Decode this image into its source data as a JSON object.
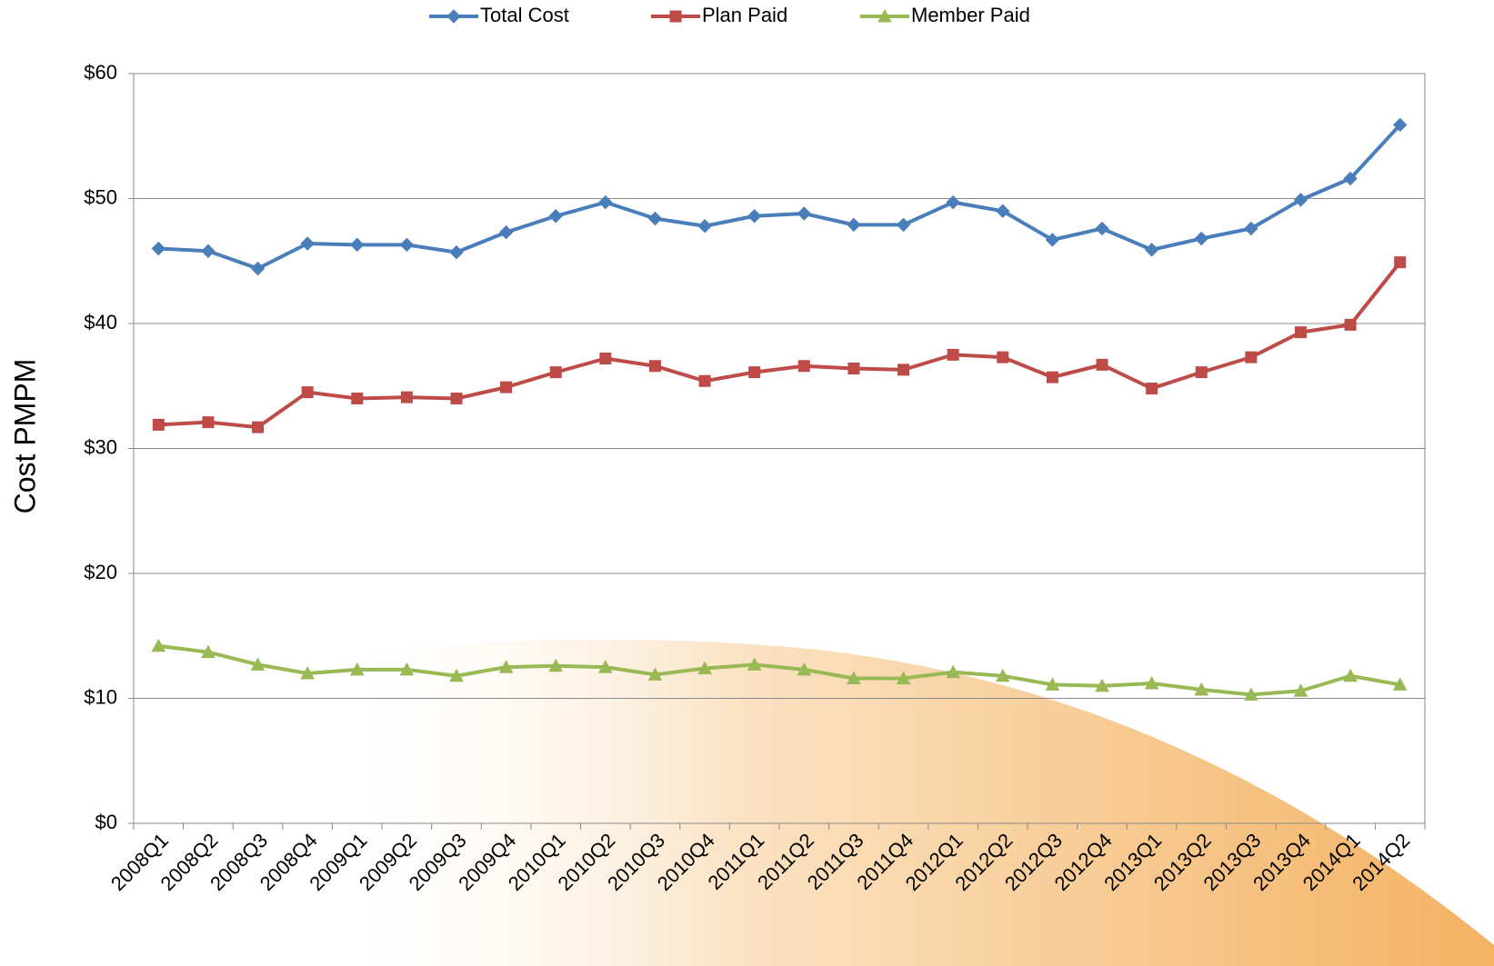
{
  "chart_data": {
    "type": "line",
    "y_label": "Cost PMPM",
    "categories": [
      "2008Q1",
      "2008Q2",
      "2008Q3",
      "2008Q4",
      "2009Q1",
      "2009Q2",
      "2009Q3",
      "2009Q4",
      "2010Q1",
      "2010Q2",
      "2010Q3",
      "2010Q4",
      "2011Q1",
      "2011Q2",
      "2011Q3",
      "2011Q4",
      "2012Q1",
      "2012Q2",
      "2012Q3",
      "2012Q4",
      "2013Q1",
      "2013Q2",
      "2013Q3",
      "2013Q4",
      "2014Q1",
      "2014Q2"
    ],
    "series": [
      {
        "name": "Total Cost",
        "color": "#4a7ebb",
        "marker": "diamond",
        "values": [
          46.0,
          45.8,
          44.4,
          46.4,
          46.3,
          46.3,
          45.7,
          47.3,
          48.6,
          49.7,
          48.4,
          47.8,
          48.6,
          48.8,
          47.9,
          47.9,
          49.7,
          49.0,
          46.7,
          47.6,
          45.9,
          46.8,
          47.6,
          49.9,
          51.6,
          55.9
        ]
      },
      {
        "name": "Plan Paid",
        "color": "#be4b48",
        "marker": "square",
        "values": [
          31.9,
          32.1,
          31.7,
          34.5,
          34.0,
          34.1,
          34.0,
          34.9,
          36.1,
          37.2,
          36.6,
          35.4,
          36.1,
          36.6,
          36.4,
          36.3,
          37.5,
          37.3,
          35.7,
          36.7,
          34.8,
          36.1,
          37.3,
          39.3,
          39.9,
          44.9
        ]
      },
      {
        "name": "Member Paid",
        "color": "#98b954",
        "marker": "triangle",
        "values": [
          14.2,
          13.7,
          12.7,
          12.0,
          12.3,
          12.3,
          11.8,
          12.5,
          12.6,
          12.5,
          11.9,
          12.4,
          12.7,
          12.3,
          11.6,
          11.6,
          12.1,
          11.8,
          11.1,
          11.0,
          11.2,
          10.7,
          10.3,
          10.6,
          11.8,
          11.1
        ]
      }
    ],
    "ylim": [
      0,
      60
    ],
    "yticks": [
      {
        "value": 0,
        "label": "$0"
      },
      {
        "value": 10,
        "label": "$10"
      },
      {
        "value": 20,
        "label": "$20"
      },
      {
        "value": 30,
        "label": "$30"
      },
      {
        "value": 40,
        "label": "$40"
      },
      {
        "value": 50,
        "label": "$50"
      },
      {
        "value": 60,
        "label": "$60"
      }
    ],
    "grid": true,
    "legend": "top"
  }
}
